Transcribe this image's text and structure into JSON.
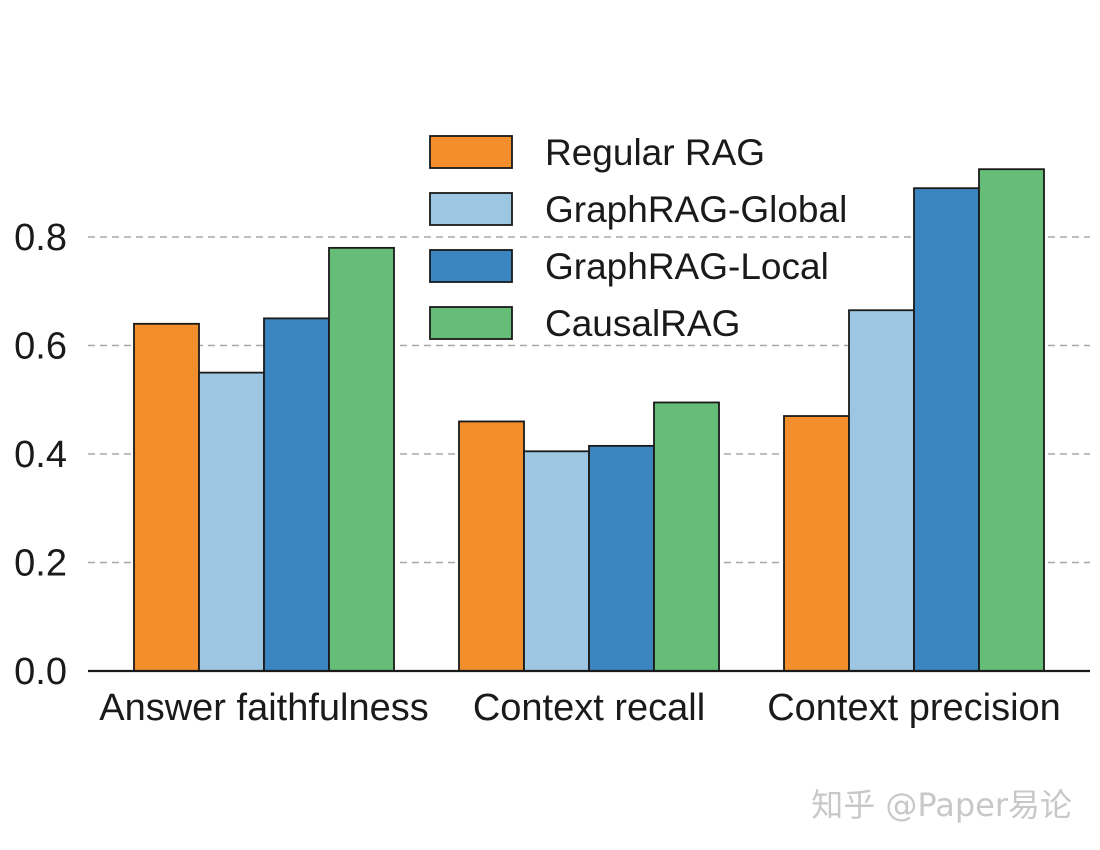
{
  "chart_data": {
    "type": "bar",
    "categories": [
      "Answer faithfulness",
      "Context recall",
      "Context precision"
    ],
    "series": [
      {
        "name": "Regular RAG",
        "color": "#f28e2b",
        "values": [
          0.64,
          0.46,
          0.47
        ]
      },
      {
        "name": "GraphRAG-Global",
        "color": "#9cc6e2",
        "values": [
          0.55,
          0.405,
          0.665
        ]
      },
      {
        "name": "GraphRAG-Local",
        "color": "#3b85c0",
        "values": [
          0.65,
          0.415,
          0.89
        ]
      },
      {
        "name": "CausalRAG",
        "color": "#66bd77",
        "values": [
          0.78,
          0.495,
          0.925
        ]
      }
    ],
    "yticks": [
      "0.0",
      "0.2",
      "0.4",
      "0.6",
      "0.8"
    ],
    "ylim": [
      0,
      1.0
    ],
    "grid": "horizontal dashed",
    "legend_position": "top-center",
    "xlabel": "",
    "ylabel": "",
    "title": ""
  },
  "watermark": "知乎 @Paper易论"
}
